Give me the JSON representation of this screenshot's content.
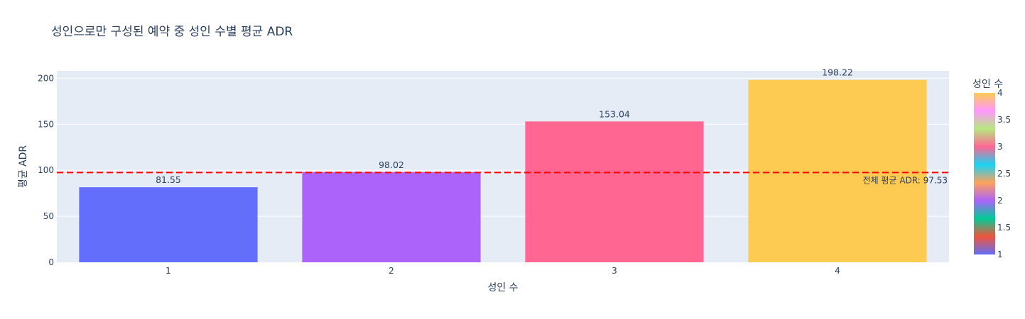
{
  "chart_data": {
    "type": "bar",
    "title": "성인으로만 구성된 예약 중 성인 수별 평균 ADR",
    "xlabel": "성인 수",
    "ylabel": "평균 ADR",
    "categories": [
      "1",
      "2",
      "3",
      "4"
    ],
    "values": [
      81.55,
      98.02,
      153.04,
      198.22
    ],
    "value_labels": [
      "81.55",
      "98.02",
      "153.04",
      "198.22"
    ],
    "bar_colors": [
      "#636efa",
      "#ab63fa",
      "#ff6692",
      "#fecb52"
    ],
    "ylim": [
      0,
      208
    ],
    "yticks": [
      0,
      50,
      100,
      150,
      200
    ],
    "grid": true,
    "background": "#e5ecf6",
    "reference_line": {
      "value": 97.53,
      "label": "전체 평균 ADR: 97.53",
      "color": "#ff0000",
      "style": "dashed"
    },
    "colorbar": {
      "title": "성인 수",
      "range": [
        1,
        4
      ],
      "tick_labels": [
        "1",
        "1.5",
        "2",
        "2.5",
        "3",
        "3.5",
        "4"
      ],
      "colors": [
        "#636efa",
        "#ef553b",
        "#00cc96",
        "#ab63fa",
        "#ffa15a",
        "#19d3f3",
        "#ff6692",
        "#b6e880",
        "#ff97ff",
        "#fecb52"
      ]
    }
  }
}
